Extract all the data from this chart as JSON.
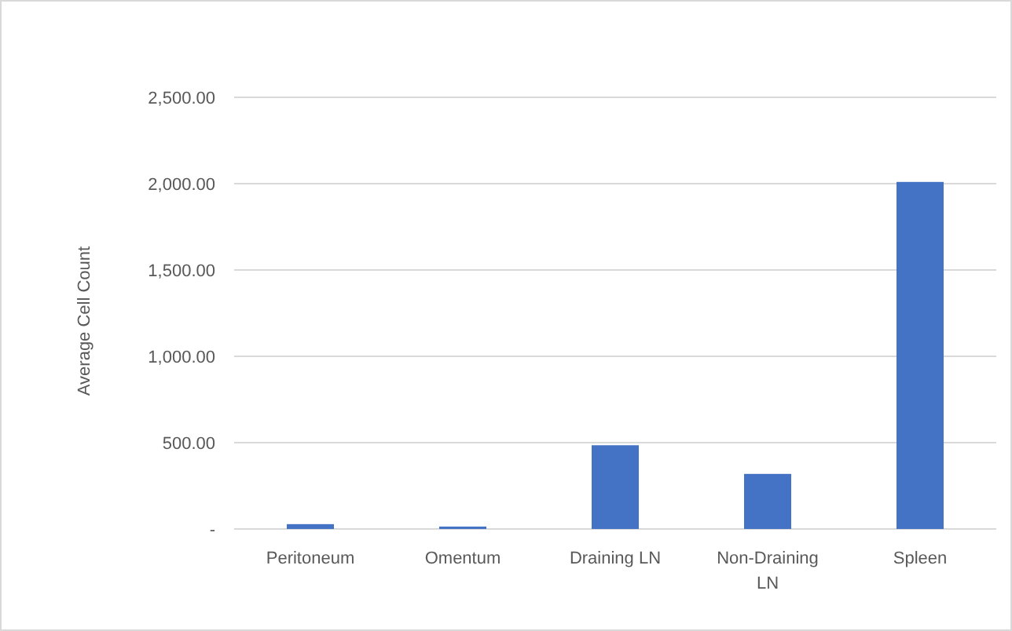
{
  "chart_data": {
    "type": "bar",
    "ylabel": "Average Cell Count",
    "categories": [
      "Peritoneum",
      "Omentum",
      "Draining LN",
      "Non-Draining LN",
      "Spleen"
    ],
    "values": [
      28,
      14,
      485,
      319,
      2010
    ],
    "color": "#4472c4",
    "ylim": [
      0,
      2500
    ],
    "yticks": [
      {
        "value": 0,
        "label": "-"
      },
      {
        "value": 500,
        "label": "500.00"
      },
      {
        "value": 1000,
        "label": "1,000.00"
      },
      {
        "value": 1500,
        "label": "1,500.00"
      },
      {
        "value": 2000,
        "label": "2,000.00"
      },
      {
        "value": 2500,
        "label": "2,500.00"
      }
    ],
    "grid": "y"
  }
}
